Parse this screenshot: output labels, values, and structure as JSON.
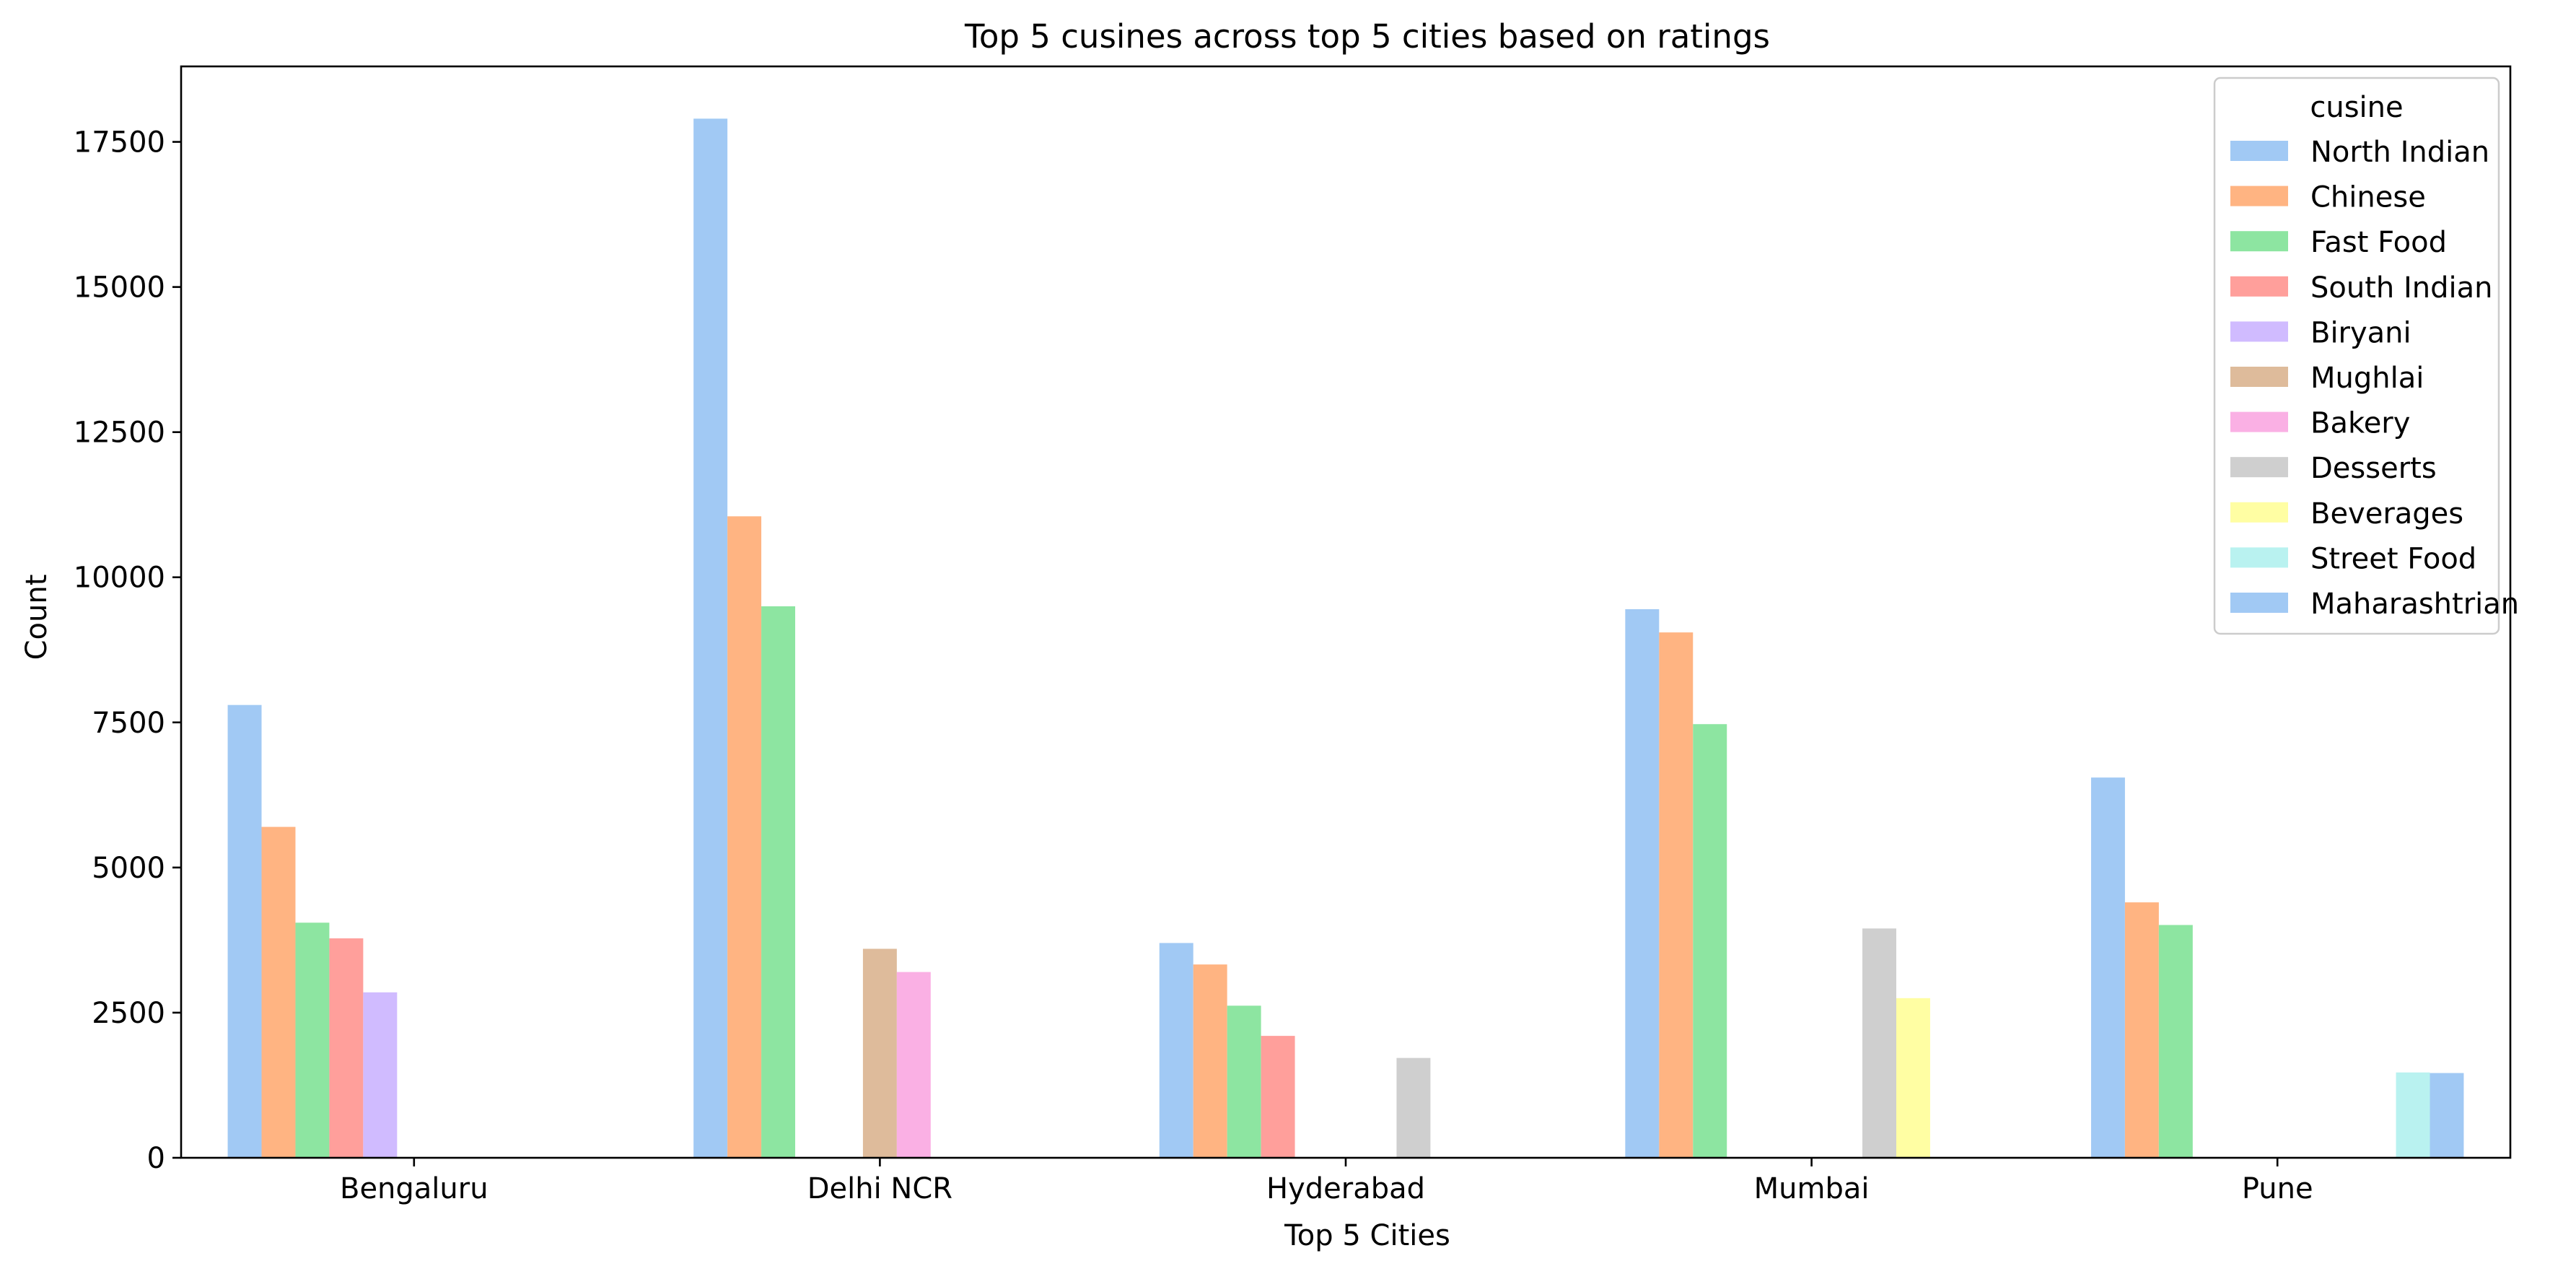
{
  "chart_data": {
    "type": "bar",
    "title": "Top 5 cusines across top 5 cities based on ratings",
    "xlabel": "Top 5 Cities",
    "ylabel": "Count",
    "ylim": [
      0,
      18800
    ],
    "yticks": [
      0,
      2500,
      5000,
      7500,
      10000,
      12500,
      15000,
      17500
    ],
    "grid": false,
    "legend": {
      "title": "cusine",
      "placement": "top-right"
    },
    "categories": [
      "Bengaluru",
      "Delhi NCR",
      "Hyderabad",
      "Mumbai",
      "Pune"
    ],
    "series": [
      {
        "name": "North Indian",
        "color": "#a1c9f4",
        "values": [
          7800,
          17900,
          3700,
          9450,
          6550
        ]
      },
      {
        "name": "Chinese",
        "color": "#ffb482",
        "values": [
          5700,
          11050,
          3330,
          9050,
          4400
        ]
      },
      {
        "name": "Fast Food",
        "color": "#8de5a1",
        "values": [
          4050,
          9500,
          2620,
          7470,
          4010
        ]
      },
      {
        "name": "South Indian",
        "color": "#ff9f9b",
        "values": [
          3780,
          null,
          2100,
          null,
          null
        ]
      },
      {
        "name": "Biryani",
        "color": "#d0bbff",
        "values": [
          2850,
          null,
          null,
          null,
          null
        ]
      },
      {
        "name": "Mughlai",
        "color": "#debb9b",
        "values": [
          null,
          3600,
          null,
          null,
          null
        ]
      },
      {
        "name": "Bakery",
        "color": "#fab0e4",
        "values": [
          null,
          3200,
          null,
          null,
          null
        ]
      },
      {
        "name": "Desserts",
        "color": "#cfcfcf",
        "values": [
          null,
          null,
          1720,
          3950,
          null
        ]
      },
      {
        "name": "Beverages",
        "color": "#fffea3",
        "values": [
          null,
          null,
          null,
          2750,
          null
        ]
      },
      {
        "name": "Street Food",
        "color": "#b9f2f0",
        "values": [
          null,
          null,
          null,
          null,
          1470
        ]
      },
      {
        "name": "Maharashtrian",
        "color": "#a1c9f4",
        "values": [
          null,
          null,
          null,
          null,
          1460
        ]
      }
    ]
  }
}
